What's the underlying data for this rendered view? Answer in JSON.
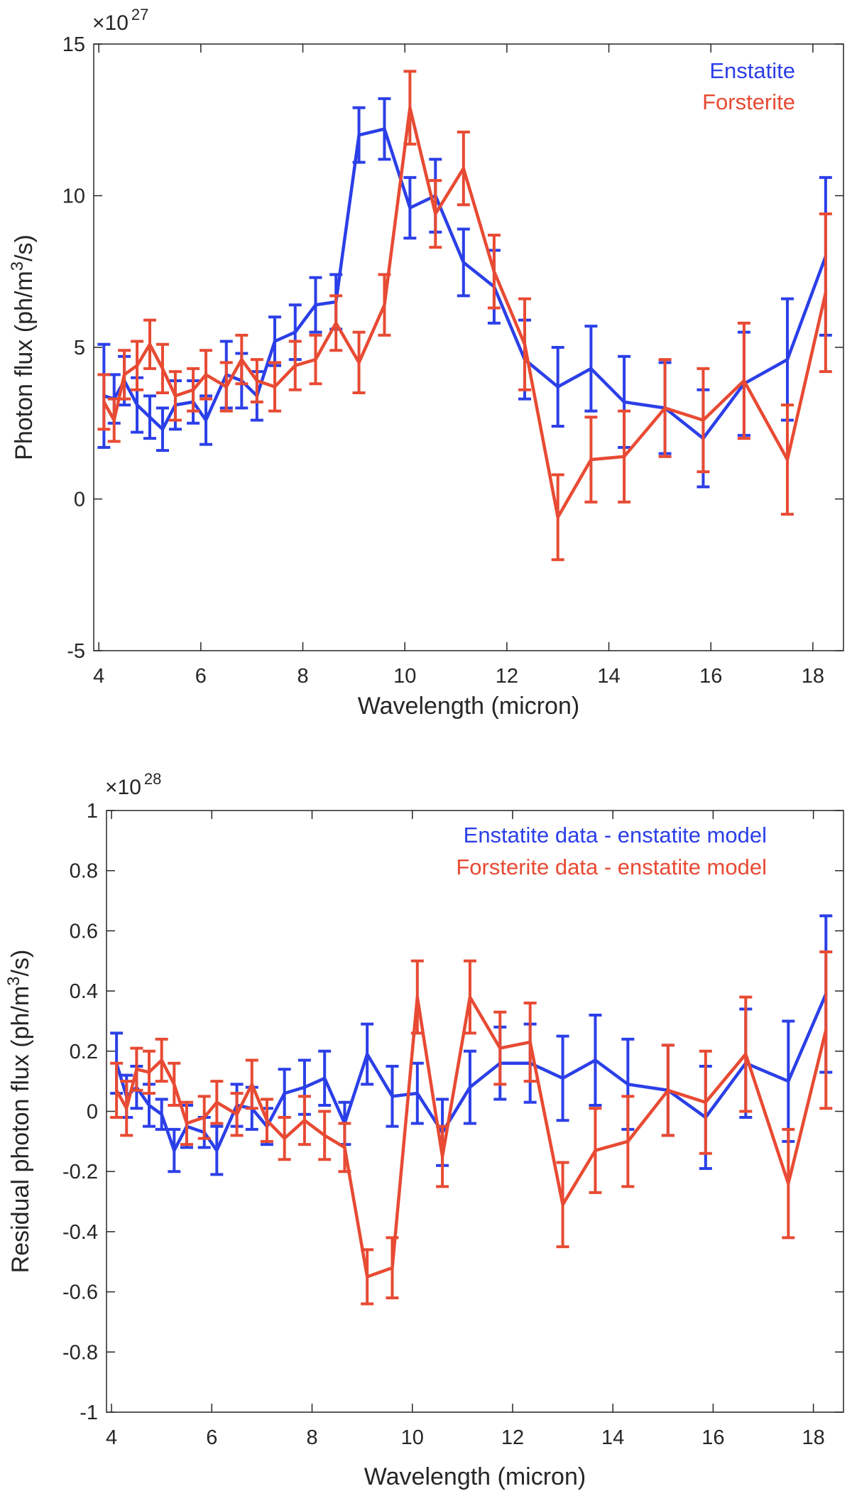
{
  "colors": {
    "enstatite": "#2b3fe8",
    "forsterite": "#e84a33",
    "axis": "#262626"
  },
  "chart_data": [
    {
      "type": "line",
      "title": "",
      "xlabel": "Wavelength (micron)",
      "ylabel_prefix": "Photon flux (ph/m",
      "ylabel_sup": "3",
      "ylabel_suffix": "/s)",
      "multiplier_prefix": "×10",
      "multiplier_exp": "27",
      "xlim": [
        3.9,
        18.6
      ],
      "ylim": [
        -5,
        15
      ],
      "xticks": [
        4,
        6,
        8,
        10,
        12,
        14,
        16,
        18
      ],
      "yticks": [
        -5,
        0,
        5,
        10,
        15
      ],
      "ytick_labels": [
        "-5",
        "0",
        "5",
        "10",
        "15"
      ],
      "legend_position": "top-right",
      "series": [
        {
          "name": "Enstatite",
          "color": "#2b3fe8",
          "x": [
            4.1,
            4.3,
            4.5,
            4.75,
            5.0,
            5.25,
            5.5,
            5.85,
            6.1,
            6.5,
            6.8,
            7.1,
            7.45,
            7.85,
            8.25,
            8.65,
            9.1,
            9.6,
            10.1,
            10.6,
            11.15,
            11.75,
            12.35,
            13.0,
            13.65,
            14.3,
            15.1,
            15.85,
            16.65,
            17.5,
            18.25
          ],
          "y": [
            3.4,
            3.3,
            3.9,
            3.1,
            2.7,
            2.3,
            3.1,
            3.2,
            2.6,
            4.1,
            3.9,
            3.4,
            5.2,
            5.5,
            6.4,
            6.5,
            12.0,
            12.2,
            9.6,
            10.0,
            7.8,
            7.0,
            4.6,
            3.7,
            4.3,
            3.2,
            3.0,
            2.0,
            3.8,
            4.6,
            8.0
          ],
          "err": [
            1.7,
            0.8,
            0.8,
            0.9,
            0.7,
            0.7,
            0.8,
            0.7,
            0.8,
            1.1,
            0.9,
            0.8,
            0.8,
            0.9,
            0.9,
            0.9,
            0.9,
            1.0,
            1.0,
            1.2,
            1.1,
            1.2,
            1.3,
            1.3,
            1.4,
            1.5,
            1.5,
            1.6,
            1.7,
            2.0,
            2.6
          ]
        },
        {
          "name": "Forsterite",
          "color": "#e84a33",
          "x": [
            4.1,
            4.3,
            4.5,
            4.75,
            5.0,
            5.25,
            5.5,
            5.85,
            6.1,
            6.5,
            6.8,
            7.1,
            7.45,
            7.85,
            8.25,
            8.65,
            9.1,
            9.6,
            10.1,
            10.6,
            11.15,
            11.75,
            12.35,
            13.0,
            13.65,
            14.3,
            15.1,
            15.85,
            16.65,
            17.5,
            18.25
          ],
          "y": [
            3.2,
            2.6,
            4.1,
            4.4,
            5.1,
            4.3,
            3.4,
            3.6,
            4.1,
            3.7,
            4.6,
            3.9,
            3.7,
            4.4,
            4.6,
            5.8,
            4.5,
            6.4,
            12.9,
            9.4,
            10.9,
            7.5,
            5.1,
            -0.6,
            1.3,
            1.4,
            3.0,
            2.6,
            3.9,
            1.3,
            6.8
          ],
          "err": [
            0.9,
            0.7,
            0.8,
            0.8,
            0.8,
            0.8,
            0.8,
            0.7,
            0.8,
            0.8,
            0.8,
            0.7,
            0.8,
            0.8,
            0.8,
            0.9,
            1.0,
            1.0,
            1.2,
            1.1,
            1.2,
            1.2,
            1.5,
            1.4,
            1.4,
            1.5,
            1.6,
            1.7,
            1.9,
            1.8,
            2.6
          ]
        }
      ]
    },
    {
      "type": "line",
      "title": "",
      "xlabel": "Wavelength (micron)",
      "ylabel_prefix": "Residual photon flux (ph/m",
      "ylabel_sup": "3",
      "ylabel_suffix": "/s)",
      "multiplier_prefix": "×10",
      "multiplier_exp": "28",
      "xlim": [
        3.9,
        18.6
      ],
      "ylim": [
        -1,
        1
      ],
      "xticks": [
        4,
        6,
        8,
        10,
        12,
        14,
        16,
        18
      ],
      "yticks": [
        -1,
        -0.8,
        -0.6,
        -0.4,
        -0.2,
        0,
        0.2,
        0.4,
        0.6,
        0.8,
        1
      ],
      "ytick_labels": [
        "-1",
        "-0.8",
        "-0.6",
        "-0.4",
        "-0.2",
        "0",
        "0.2",
        "0.4",
        "0.6",
        "0.8",
        "1"
      ],
      "legend_position": "top-right",
      "series": [
        {
          "name": "Enstatite data - enstatite model",
          "color": "#2b3fe8",
          "x": [
            4.1,
            4.3,
            4.5,
            4.75,
            5.0,
            5.25,
            5.5,
            5.85,
            6.1,
            6.5,
            6.8,
            7.1,
            7.45,
            7.85,
            8.25,
            8.65,
            9.1,
            9.6,
            10.1,
            10.6,
            11.15,
            11.75,
            12.35,
            13.0,
            13.65,
            14.3,
            15.1,
            15.85,
            16.65,
            17.5,
            18.25
          ],
          "y": [
            0.16,
            0.05,
            0.08,
            0.02,
            -0.01,
            -0.13,
            -0.05,
            -0.07,
            -0.13,
            0.02,
            0.01,
            -0.05,
            0.06,
            0.08,
            0.11,
            -0.04,
            0.19,
            0.05,
            0.06,
            -0.07,
            0.08,
            0.16,
            0.16,
            0.11,
            0.17,
            0.09,
            0.07,
            -0.02,
            0.16,
            0.1,
            0.39
          ],
          "err": [
            0.1,
            0.07,
            0.07,
            0.07,
            0.05,
            0.07,
            0.07,
            0.05,
            0.08,
            0.07,
            0.07,
            0.06,
            0.08,
            0.09,
            0.09,
            0.07,
            0.1,
            0.1,
            0.1,
            0.11,
            0.12,
            0.12,
            0.13,
            0.14,
            0.15,
            0.15,
            0.15,
            0.17,
            0.18,
            0.2,
            0.26
          ]
        },
        {
          "name": "Forsterite data - enstatite model",
          "color": "#e84a33",
          "x": [
            4.1,
            4.3,
            4.5,
            4.75,
            5.0,
            5.25,
            5.5,
            5.85,
            6.1,
            6.5,
            6.8,
            7.1,
            7.45,
            7.85,
            8.25,
            8.65,
            9.1,
            9.6,
            10.1,
            10.6,
            11.15,
            11.75,
            12.35,
            13.0,
            13.65,
            14.3,
            15.1,
            15.85,
            16.65,
            17.5,
            18.25
          ],
          "y": [
            0.07,
            0.01,
            0.14,
            0.13,
            0.17,
            0.09,
            -0.04,
            -0.02,
            0.03,
            -0.01,
            0.09,
            -0.03,
            -0.09,
            -0.03,
            -0.08,
            -0.12,
            -0.55,
            -0.52,
            0.38,
            -0.15,
            0.38,
            0.21,
            0.23,
            -0.31,
            -0.13,
            -0.1,
            0.07,
            0.03,
            0.19,
            -0.24,
            0.27
          ],
          "err": [
            0.09,
            0.09,
            0.07,
            0.07,
            0.07,
            0.07,
            0.07,
            0.07,
            0.07,
            0.07,
            0.08,
            0.07,
            0.07,
            0.08,
            0.08,
            0.08,
            0.09,
            0.1,
            0.12,
            0.1,
            0.12,
            0.12,
            0.13,
            0.14,
            0.14,
            0.15,
            0.15,
            0.17,
            0.19,
            0.18,
            0.26
          ]
        }
      ]
    }
  ]
}
